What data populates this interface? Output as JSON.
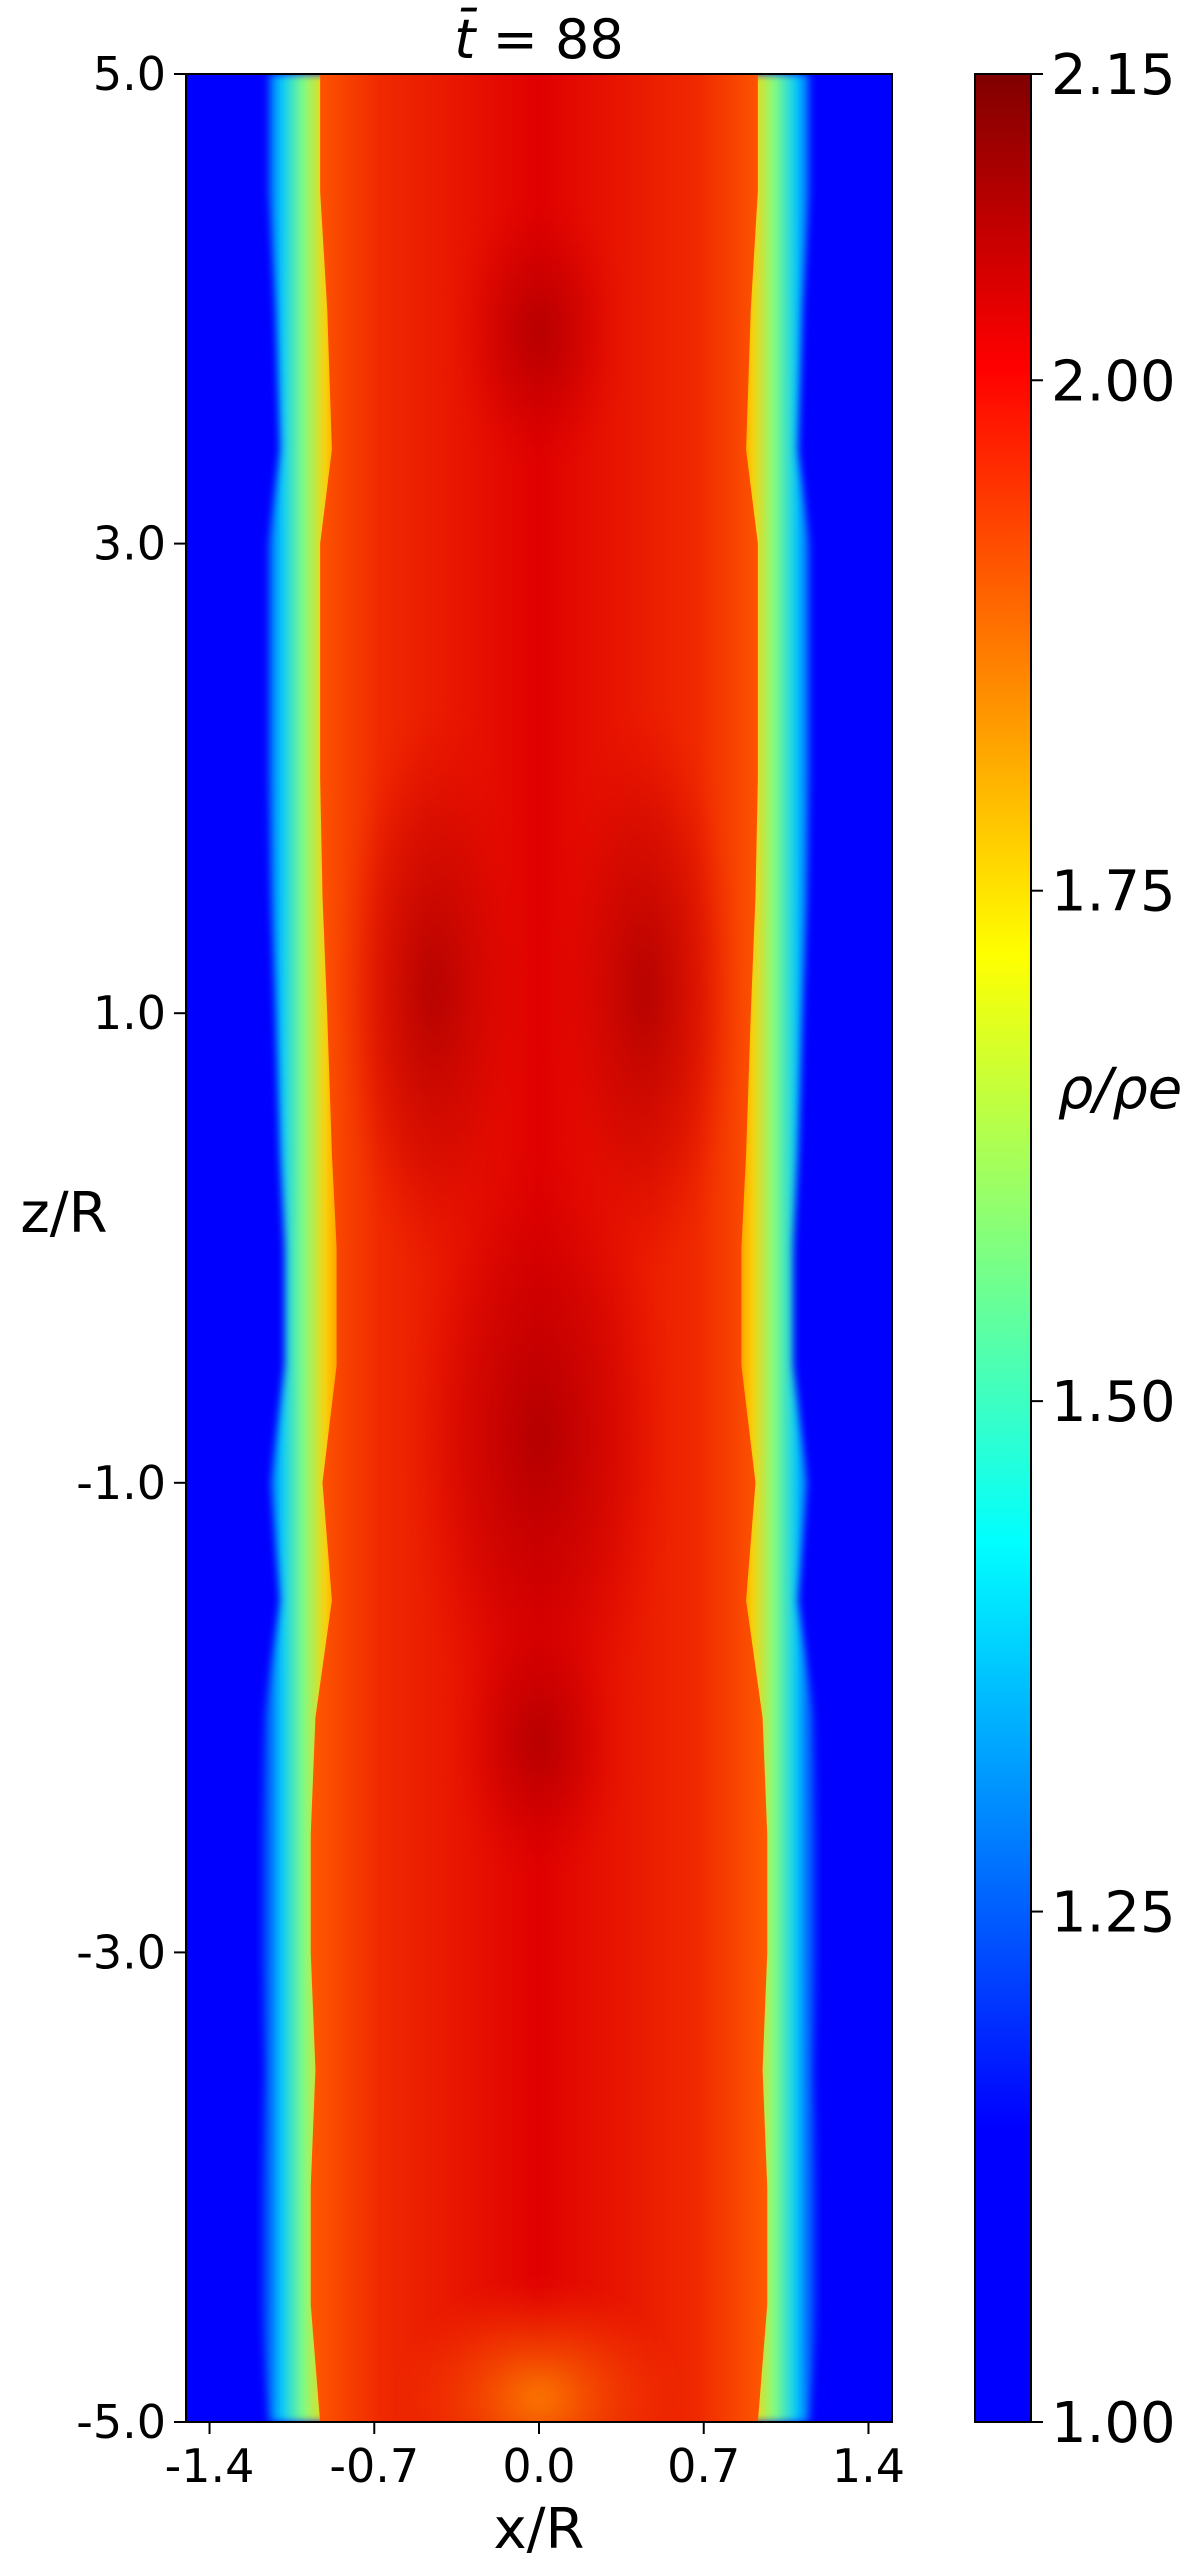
{
  "chart_data": {
    "type": "heatmap",
    "title_prefix": "t̄ = ",
    "title_value": "88",
    "xlabel": "x/R",
    "ylabel": "z/R",
    "xlim": [
      -1.5,
      1.5
    ],
    "ylim": [
      -5.0,
      5.0
    ],
    "xticks": [
      {
        "value": -1.4,
        "label": "-1.4"
      },
      {
        "value": -0.7,
        "label": "-0.7"
      },
      {
        "value": 0.0,
        "label": "0.0"
      },
      {
        "value": 0.7,
        "label": "0.7"
      },
      {
        "value": 1.4,
        "label": "1.4"
      }
    ],
    "yticks": [
      {
        "value": 5.0,
        "label": "5.0"
      },
      {
        "value": 3.0,
        "label": "3.0"
      },
      {
        "value": 1.0,
        "label": "1.0"
      },
      {
        "value": -1.0,
        "label": "-1.0"
      },
      {
        "value": -3.0,
        "label": "-3.0"
      },
      {
        "value": -5.0,
        "label": "-5.0"
      }
    ],
    "colorbar": {
      "label": "ρ/ρe",
      "colormap": "jet",
      "range": [
        1.0,
        2.15
      ],
      "ticks": [
        {
          "value": 2.15,
          "label": "2.15"
        },
        {
          "value": 2.0,
          "label": "2.00"
        },
        {
          "value": 1.75,
          "label": "1.75"
        },
        {
          "value": 1.5,
          "label": "1.50"
        },
        {
          "value": 1.25,
          "label": "1.25"
        },
        {
          "value": 1.0,
          "label": "1.00"
        }
      ]
    },
    "field_description_values": {
      "background_value": 1.0,
      "interior_value_range": [
        1.9,
        2.12
      ],
      "boundary_approx_abs_x": [
        1.0,
        0.9
      ],
      "dense_core_z": [
        1.0,
        4.0,
        -0.8,
        -2.0
      ]
    },
    "boundary_profile": [
      {
        "z": 5.0,
        "x": 0.93
      },
      {
        "z": 4.5,
        "x": 0.93
      },
      {
        "z": 4.0,
        "x": 0.9
      },
      {
        "z": 3.4,
        "x": 0.88
      },
      {
        "z": 3.0,
        "x": 0.93
      },
      {
        "z": 2.5,
        "x": 0.93
      },
      {
        "z": 2.0,
        "x": 0.93
      },
      {
        "z": 1.5,
        "x": 0.92
      },
      {
        "z": 1.0,
        "x": 0.9
      },
      {
        "z": 0.4,
        "x": 0.88
      },
      {
        "z": 0.0,
        "x": 0.86
      },
      {
        "z": -0.5,
        "x": 0.86
      },
      {
        "z": -1.0,
        "x": 0.92
      },
      {
        "z": -1.5,
        "x": 0.88
      },
      {
        "z": -2.0,
        "x": 0.95
      },
      {
        "z": -2.5,
        "x": 0.97
      },
      {
        "z": -3.0,
        "x": 0.97
      },
      {
        "z": -3.5,
        "x": 0.95
      },
      {
        "z": -4.0,
        "x": 0.97
      },
      {
        "z": -4.5,
        "x": 0.97
      },
      {
        "z": -5.0,
        "x": 0.93
      }
    ]
  }
}
